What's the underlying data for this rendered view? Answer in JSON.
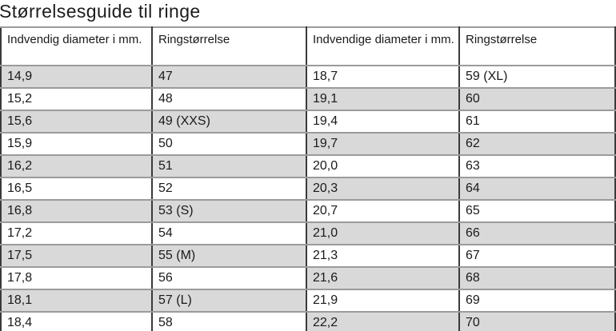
{
  "page_title": "Størrelsesguide til ringe",
  "table": {
    "columns": [
      {
        "header": "Indvendig diameter i mm."
      },
      {
        "header": "Ringstørrelse"
      },
      {
        "header": "Indvendige diameter i mm."
      },
      {
        "header": "Ringstørrelse"
      }
    ],
    "rows": [
      [
        "14,9",
        "47",
        "18,7",
        "59 (XL)"
      ],
      [
        "15,2",
        "48",
        "19,1",
        "60"
      ],
      [
        "15,6",
        "49 (XXS)",
        "19,4",
        "61"
      ],
      [
        "15,9",
        "50",
        "19,7",
        "62"
      ],
      [
        "16,2",
        "51",
        "20,0",
        "63"
      ],
      [
        "16,5",
        "52",
        "20,3",
        "64"
      ],
      [
        "16,8",
        "53 (S)",
        "20,7",
        "65"
      ],
      [
        "17,2",
        "54",
        "21,0",
        "66"
      ],
      [
        "17,5",
        "55 (M)",
        "21,3",
        "67"
      ],
      [
        "17,8",
        "56",
        "21,6",
        "68"
      ],
      [
        "18,1",
        "57 (L)",
        "21,9",
        "69"
      ],
      [
        "18,4",
        "58",
        "22,2",
        "70"
      ]
    ],
    "shading_note": "checkered: left column pair shaded on odd rows (1st,3rd,...), right column pair shaded on even rows (2nd,4th,...)"
  },
  "colors": {
    "row_shade": "#d9d9d9",
    "grid_horizontal": "#9b9b9b",
    "grid_vertical": "#3a3a3a",
    "table_bottom_border": "#5f5f5f",
    "text": "#1a1a1a"
  }
}
